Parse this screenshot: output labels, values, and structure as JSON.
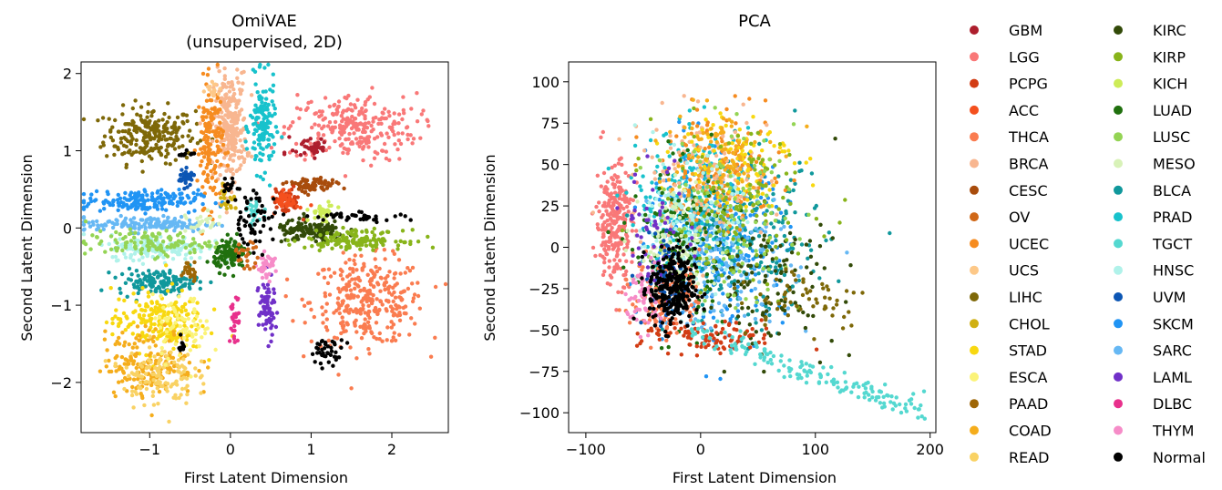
{
  "chart_data": [
    {
      "type": "scatter",
      "title": "OmiVAE\n(unsupervised, 2D)",
      "xlabel": "First Latent Dimension",
      "ylabel": "Second Latent Dimension",
      "xlim": [
        -1.85,
        2.7
      ],
      "ylim": [
        -2.65,
        2.15
      ],
      "xticks": [
        -1,
        0,
        1,
        2
      ],
      "yticks": [
        -2,
        -1,
        0,
        1,
        2
      ],
      "xtick_labels": [
        "−1",
        "0",
        "1",
        "2"
      ],
      "ytick_labels": [
        "−2",
        "−1",
        "0",
        "1",
        "2"
      ],
      "grid": false,
      "clusters": [
        {
          "label": "LIHC",
          "cx": -1.0,
          "cy": 1.2,
          "sx": 0.28,
          "sy": 0.18,
          "n": 240
        },
        {
          "label": "THCA",
          "cx": 1.7,
          "cy": -0.95,
          "sx": 0.35,
          "sy": 0.28,
          "n": 320
        },
        {
          "label": "LGG",
          "cx": 1.5,
          "cy": 1.3,
          "sx": 0.4,
          "sy": 0.22,
          "n": 260
        },
        {
          "label": "BRCA",
          "cx": 0.0,
          "cy": 1.3,
          "sx": 0.1,
          "sy": 0.35,
          "n": 280
        },
        {
          "label": "UCEC",
          "cx": -0.25,
          "cy": 1.1,
          "sx": 0.08,
          "sy": 0.4,
          "n": 150
        },
        {
          "label": "PRAD",
          "cx": 0.4,
          "cy": 1.3,
          "sx": 0.08,
          "sy": 0.3,
          "n": 140
        },
        {
          "label": "SKCM",
          "cx": -1.1,
          "cy": 0.35,
          "sx": 0.35,
          "sy": 0.07,
          "n": 180
        },
        {
          "label": "SARC",
          "cx": -1.0,
          "cy": 0.05,
          "sx": 0.4,
          "sy": 0.05,
          "n": 140
        },
        {
          "label": "HNSC",
          "cx": -0.9,
          "cy": -0.25,
          "sx": 0.3,
          "sy": 0.08,
          "n": 180
        },
        {
          "label": "BLCA",
          "cx": -0.9,
          "cy": -0.7,
          "sx": 0.25,
          "sy": 0.08,
          "n": 140
        },
        {
          "label": "LUSC",
          "cx": -1.0,
          "cy": -0.2,
          "sx": 0.4,
          "sy": 0.08,
          "n": 120
        },
        {
          "label": "STAD",
          "cx": -0.9,
          "cy": -1.2,
          "sx": 0.28,
          "sy": 0.2,
          "n": 200
        },
        {
          "label": "COAD",
          "cx": -1.0,
          "cy": -1.75,
          "sx": 0.28,
          "sy": 0.22,
          "n": 180
        },
        {
          "label": "READ",
          "cx": -0.9,
          "cy": -1.9,
          "sx": 0.22,
          "sy": 0.2,
          "n": 120
        },
        {
          "label": "ESCA",
          "cx": -0.6,
          "cy": -1.3,
          "sx": 0.18,
          "sy": 0.2,
          "n": 70
        },
        {
          "label": "LUAD",
          "cx": 0.0,
          "cy": -0.35,
          "sx": 0.1,
          "sy": 0.1,
          "n": 110
        },
        {
          "label": "KIRC",
          "cx": 1.0,
          "cy": -0.05,
          "sx": 0.22,
          "sy": 0.07,
          "n": 140
        },
        {
          "label": "KIRP",
          "cx": 1.55,
          "cy": -0.15,
          "sx": 0.3,
          "sy": 0.06,
          "n": 150
        },
        {
          "label": "KICH",
          "cx": 1.15,
          "cy": 0.2,
          "sx": 0.08,
          "sy": 0.05,
          "n": 40
        },
        {
          "label": "CESC",
          "cx": 1.0,
          "cy": 0.55,
          "sx": 0.15,
          "sy": 0.05,
          "n": 80
        },
        {
          "label": "PCPG",
          "cx": 0.7,
          "cy": 0.35,
          "sx": 0.08,
          "sy": 0.08,
          "n": 50
        },
        {
          "label": "ACC",
          "cx": 0.7,
          "cy": 0.35,
          "sx": 0.07,
          "sy": 0.06,
          "n": 40
        },
        {
          "label": "GBM",
          "cx": 1.0,
          "cy": 1.05,
          "sx": 0.12,
          "sy": 0.08,
          "n": 40
        },
        {
          "label": "UVM",
          "cx": -0.55,
          "cy": 0.65,
          "sx": 0.05,
          "sy": 0.05,
          "n": 40
        },
        {
          "label": "LAML",
          "cx": 0.45,
          "cy": -1.05,
          "sx": 0.05,
          "sy": 0.2,
          "n": 70
        },
        {
          "label": "DLBC",
          "cx": 0.05,
          "cy": -1.2,
          "sx": 0.03,
          "sy": 0.15,
          "n": 30
        },
        {
          "label": "THYM",
          "cx": 0.45,
          "cy": -0.5,
          "sx": 0.06,
          "sy": 0.08,
          "n": 40
        },
        {
          "label": "TGCT",
          "cx": 0.3,
          "cy": 0.2,
          "sx": 0.05,
          "sy": 0.08,
          "n": 25
        },
        {
          "label": "MESO",
          "cx": -0.35,
          "cy": 0.05,
          "sx": 0.1,
          "sy": 0.08,
          "n": 25
        },
        {
          "label": "OV",
          "cx": 0.2,
          "cy": -0.35,
          "sx": 0.08,
          "sy": 0.08,
          "n": 25
        },
        {
          "label": "PAAD",
          "cx": -0.5,
          "cy": -0.55,
          "sx": 0.06,
          "sy": 0.06,
          "n": 25
        },
        {
          "label": "CHOL",
          "cx": -0.05,
          "cy": 0.4,
          "sx": 0.05,
          "sy": 0.1,
          "n": 20
        },
        {
          "label": "UCS",
          "cx": -0.2,
          "cy": 1.8,
          "sx": 0.05,
          "sy": 0.05,
          "n": 15
        },
        {
          "label": "Normal",
          "cx": 0.3,
          "cy": 0.1,
          "sx": 0.15,
          "sy": 0.2,
          "n": 60
        },
        {
          "label": "Normal",
          "cx": 1.2,
          "cy": -1.6,
          "sx": 0.1,
          "sy": 0.08,
          "n": 40
        },
        {
          "label": "Normal",
          "cx": 1.6,
          "cy": 0.15,
          "sx": 0.3,
          "sy": 0.03,
          "n": 40
        },
        {
          "label": "Normal",
          "cx": 0.0,
          "cy": 0.55,
          "sx": 0.05,
          "sy": 0.05,
          "n": 15
        },
        {
          "label": "Normal",
          "cx": -0.6,
          "cy": -1.5,
          "sx": 0.02,
          "sy": 0.05,
          "n": 10
        },
        {
          "label": "Normal",
          "cx": -0.55,
          "cy": 0.95,
          "sx": 0.05,
          "sy": 0.04,
          "n": 12
        }
      ]
    },
    {
      "type": "scatter",
      "title": "PCA",
      "xlabel": "First Latent Dimension",
      "ylabel": "Second Latent Dimension",
      "xlim": [
        -115,
        205
      ],
      "ylim": [
        -112,
        112
      ],
      "xticks": [
        -100,
        0,
        100,
        200
      ],
      "yticks": [
        -100,
        -75,
        -50,
        -25,
        0,
        25,
        50,
        75,
        100
      ],
      "xtick_labels": [
        "−100",
        "0",
        "100",
        "200"
      ],
      "ytick_labels": [
        "−100",
        "−75",
        "−50",
        "−25",
        "0",
        "25",
        "50",
        "75",
        "100"
      ],
      "grid": false,
      "clusters": [
        {
          "label": "LGG",
          "cx": -75,
          "cy": 15,
          "sx": 8,
          "sy": 18,
          "n": 260
        },
        {
          "label": "SKCM",
          "cx": 15,
          "cy": 5,
          "sx": 30,
          "sy": 25,
          "n": 320
        },
        {
          "label": "PRAD",
          "cx": -5,
          "cy": 30,
          "sx": 25,
          "sy": 20,
          "n": 220
        },
        {
          "label": "BLCA",
          "cx": 40,
          "cy": 0,
          "sx": 35,
          "sy": 25,
          "n": 220
        },
        {
          "label": "SARC",
          "cx": 20,
          "cy": -5,
          "sx": 30,
          "sy": 22,
          "n": 180
        },
        {
          "label": "UCEC",
          "cx": 20,
          "cy": 45,
          "sx": 25,
          "sy": 18,
          "n": 150
        },
        {
          "label": "BRCA",
          "cx": 0,
          "cy": 40,
          "sx": 30,
          "sy": 20,
          "n": 150
        },
        {
          "label": "STAD",
          "cx": 30,
          "cy": 55,
          "sx": 25,
          "sy": 15,
          "n": 100
        },
        {
          "label": "COAD",
          "cx": 10,
          "cy": 55,
          "sx": 25,
          "sy": 15,
          "n": 100
        },
        {
          "label": "HNSC",
          "cx": -10,
          "cy": 10,
          "sx": 20,
          "sy": 20,
          "n": 150
        },
        {
          "label": "LUAD",
          "cx": -20,
          "cy": 0,
          "sx": 20,
          "sy": 25,
          "n": 150
        },
        {
          "label": "KIRC",
          "cx": 60,
          "cy": -20,
          "sx": 30,
          "sy": 20,
          "n": 120
        },
        {
          "label": "KIRP",
          "cx": 30,
          "cy": 20,
          "sx": 35,
          "sy": 25,
          "n": 120
        },
        {
          "label": "LUSC",
          "cx": 20,
          "cy": 20,
          "sx": 30,
          "sy": 25,
          "n": 100
        },
        {
          "label": "MESO",
          "cx": -20,
          "cy": 5,
          "sx": 20,
          "sy": 20,
          "n": 80
        },
        {
          "label": "THCA",
          "cx": -30,
          "cy": -30,
          "sx": 15,
          "sy": 12,
          "n": 120
        },
        {
          "label": "LAML",
          "cx": -35,
          "cy": 10,
          "sx": 15,
          "sy": 20,
          "n": 60
        },
        {
          "label": "UVM",
          "cx": -30,
          "cy": -20,
          "sx": 10,
          "sy": 15,
          "n": 60
        },
        {
          "label": "THYM",
          "cx": -50,
          "cy": -30,
          "sx": 8,
          "sy": 10,
          "n": 60
        },
        {
          "label": "PCPG",
          "cx": 10,
          "cy": -55,
          "sx": 30,
          "sy": 5,
          "n": 100
        },
        {
          "label": "Normal",
          "cx": -25,
          "cy": -25,
          "sx": 10,
          "sy": 12,
          "n": 260
        },
        {
          "label": "LIHC",
          "cx": 90,
          "cy": -30,
          "sx": 30,
          "sy": 10,
          "n": 60
        }
      ],
      "trail": {
        "label": "TGCT",
        "from": [
          -10,
          -50
        ],
        "to": [
          195,
          -100
        ],
        "spread": 4,
        "n": 160
      }
    }
  ],
  "legend": {
    "placement": "right",
    "entries": [
      {
        "label": "GBM",
        "color": "#ad1e2d"
      },
      {
        "label": "LGG",
        "color": "#f97878"
      },
      {
        "label": "PCPG",
        "color": "#d23c14"
      },
      {
        "label": "ACC",
        "color": "#f4501e"
      },
      {
        "label": "THCA",
        "color": "#fa7c50"
      },
      {
        "label": "BRCA",
        "color": "#f8b690"
      },
      {
        "label": "CESC",
        "color": "#a84c0c"
      },
      {
        "label": "OV",
        "color": "#d06818"
      },
      {
        "label": "UCEC",
        "color": "#f68c20"
      },
      {
        "label": "UCS",
        "color": "#fdc888"
      },
      {
        "label": "LIHC",
        "color": "#7e6808"
      },
      {
        "label": "CHOL",
        "color": "#d0b012"
      },
      {
        "label": "STAD",
        "color": "#f8d810"
      },
      {
        "label": "ESCA",
        "color": "#fbf378"
      },
      {
        "label": "PAAD",
        "color": "#9e6606"
      },
      {
        "label": "COAD",
        "color": "#f5ad1c"
      },
      {
        "label": "READ",
        "color": "#f9d264"
      },
      {
        "label": "KIRC",
        "color": "#324a08"
      },
      {
        "label": "KIRP",
        "color": "#88b41a"
      },
      {
        "label": "KICH",
        "color": "#cdec58"
      },
      {
        "label": "LUAD",
        "color": "#20700e"
      },
      {
        "label": "LUSC",
        "color": "#94d454"
      },
      {
        "label": "MESO",
        "color": "#d8f2b8"
      },
      {
        "label": "BLCA",
        "color": "#10989c"
      },
      {
        "label": "PRAD",
        "color": "#18c2cc"
      },
      {
        "label": "TGCT",
        "color": "#54d8d0"
      },
      {
        "label": "HNSC",
        "color": "#b0f2ea"
      },
      {
        "label": "UVM",
        "color": "#0c56b4"
      },
      {
        "label": "SKCM",
        "color": "#2094f4"
      },
      {
        "label": "SARC",
        "color": "#66b8f4"
      },
      {
        "label": "LAML",
        "color": "#7030c8"
      },
      {
        "label": "DLBC",
        "color": "#e8308c"
      },
      {
        "label": "THYM",
        "color": "#f68cc8"
      },
      {
        "label": "Normal",
        "color": "#000000"
      }
    ]
  }
}
